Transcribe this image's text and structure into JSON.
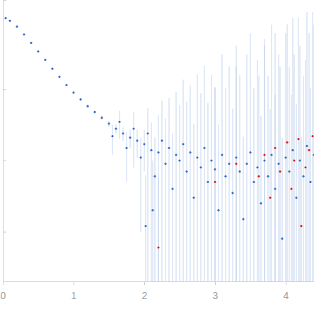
{
  "chart_data": {
    "type": "scatter",
    "log": "y",
    "tick_labels": "x",
    "xlim": [
      0,
      4.4
    ],
    "xticks": [
      0,
      1,
      2,
      3,
      4
    ],
    "ylim": [
      0.002,
      18
    ],
    "yticks": [
      0.01,
      0.1,
      1
    ],
    "series": [
      {
        "color": "#3a6fc4",
        "marker": "circle",
        "x": [
          0.04,
          0.1,
          0.2,
          0.3,
          0.4,
          0.5,
          0.6,
          0.7,
          0.8,
          0.9,
          1.0,
          1.1,
          1.2,
          1.3,
          1.4,
          1.5,
          1.6,
          1.7,
          1.8,
          1.9,
          2.0,
          1.55,
          1.65,
          1.75,
          1.85,
          1.95,
          2.02,
          2.05,
          2.1,
          2.12,
          2.15,
          2.2,
          2.25,
          2.3,
          2.35,
          2.4,
          2.45,
          2.5,
          2.55,
          2.6,
          2.65,
          2.7,
          2.75,
          2.8,
          2.85,
          2.9,
          2.95,
          3.0,
          3.05,
          3.1,
          3.15,
          3.2,
          3.25,
          3.3,
          3.35,
          3.4,
          3.45,
          3.5,
          3.55,
          3.6,
          3.65,
          3.7,
          3.75,
          3.8,
          3.85,
          3.9,
          3.95,
          4.0,
          4.05,
          4.1,
          4.15,
          4.2,
          4.25,
          4.3,
          4.35,
          4.4
        ],
        "values": [
          10.0,
          9.2,
          7.6,
          5.9,
          4.5,
          3.4,
          2.6,
          1.95,
          1.5,
          1.15,
          0.9,
          0.72,
          0.58,
          0.48,
          0.4,
          0.33,
          0.28,
          0.24,
          0.21,
          0.19,
          0.17,
          0.22,
          0.35,
          0.15,
          0.28,
          0.11,
          0.012,
          0.24,
          0.14,
          0.02,
          0.06,
          0.13,
          0.19,
          0.09,
          0.15,
          0.04,
          0.12,
          0.1,
          0.17,
          0.07,
          0.13,
          0.03,
          0.11,
          0.08,
          0.15,
          0.05,
          0.1,
          0.075,
          0.02,
          0.12,
          0.06,
          0.09,
          0.035,
          0.11,
          0.07,
          0.015,
          0.09,
          0.13,
          0.05,
          0.08,
          0.025,
          0.1,
          0.06,
          0.12,
          0.04,
          0.09,
          0.008,
          0.11,
          0.07,
          0.14,
          0.03,
          0.1,
          0.06,
          0.16,
          0.05,
          0.12
        ],
        "errors": [
          0.2,
          0.18,
          0.15,
          0.12,
          0.09,
          0.07,
          0.05,
          0.04,
          0.03,
          0.03,
          0.03,
          0.03,
          0.03,
          0.03,
          0.03,
          0.03,
          0.04,
          0.05,
          0.06,
          0.08,
          0.1,
          0.1,
          0.15,
          0.1,
          0.2,
          0.1,
          0.05,
          0.3,
          0.2,
          0.08,
          0.15,
          0.3,
          0.5,
          0.3,
          0.6,
          0.2,
          0.8,
          0.5,
          1.2,
          0.6,
          1.0,
          0.3,
          1.5,
          0.8,
          2.0,
          0.6,
          1.5,
          1.0,
          0.3,
          3.0,
          1.0,
          2.0,
          0.5,
          4.0,
          1.5,
          0.2,
          3.0,
          6.0,
          1.0,
          2.5,
          0.4,
          5.0,
          1.5,
          8.0,
          0.8,
          3.0,
          0.2,
          6.0,
          2.0,
          10.0,
          0.6,
          4.0,
          1.5,
          12.0,
          1.0,
          8.0
        ]
      },
      {
        "color": "#e02020",
        "marker": "circle",
        "x": [
          2.2,
          3.0,
          3.3,
          3.62,
          3.7,
          3.78,
          3.85,
          3.92,
          4.02,
          4.08,
          4.12,
          4.18,
          4.22,
          4.28,
          4.33,
          4.38,
          4.42
        ],
        "values": [
          0.006,
          0.05,
          0.09,
          0.06,
          0.12,
          0.03,
          0.15,
          0.07,
          0.18,
          0.04,
          0.1,
          0.2,
          0.012,
          0.08,
          0.14,
          0.22,
          0.06
        ],
        "errors": [
          0.05,
          1.0,
          2.0,
          1.5,
          4.0,
          0.5,
          6.0,
          2.0,
          8.0,
          0.8,
          3.0,
          10.0,
          0.2,
          2.5,
          6.0,
          12.0,
          1.5
        ]
      }
    ]
  }
}
